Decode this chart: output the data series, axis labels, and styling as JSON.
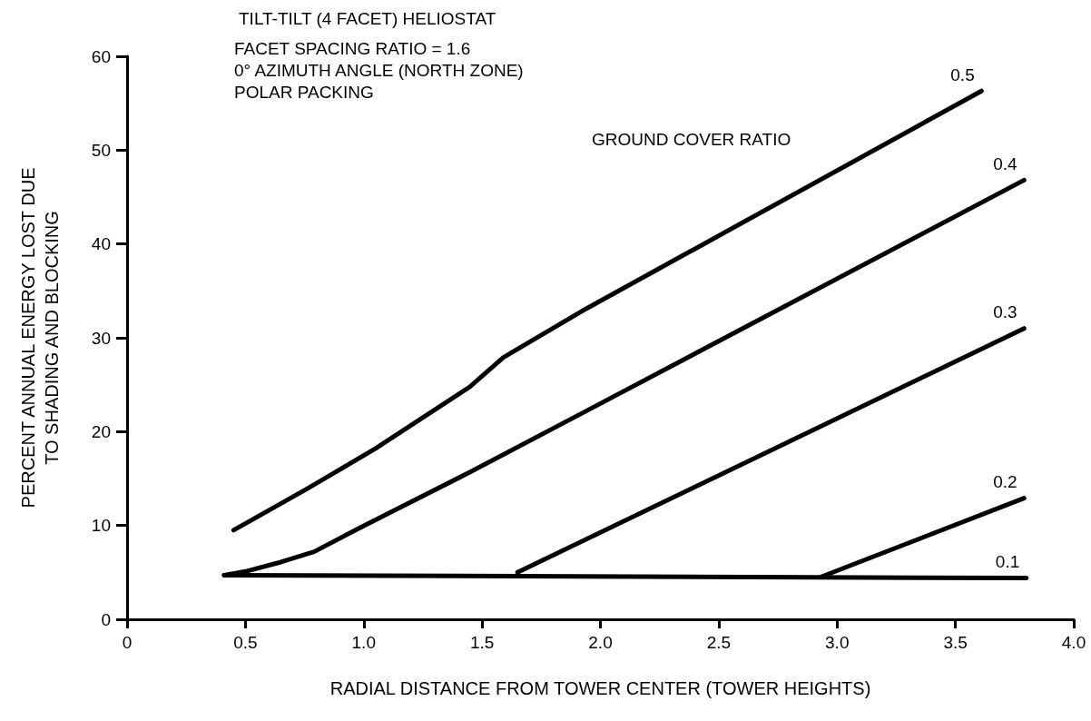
{
  "chart_data": {
    "type": "line",
    "title": "TILT-TILT (4 FACET) HELIOSTAT",
    "annotations": [
      "FACET SPACING RATIO = 1.6",
      "0° AZIMUTH ANGLE (NORTH ZONE)",
      "POLAR PACKING"
    ],
    "legend_title": "GROUND COVER RATIO",
    "xlabel": "RADIAL DISTANCE FROM TOWER CENTER (TOWER HEIGHTS)",
    "ylabel": "PERCENT ANNUAL ENERGY LOST DUE\nTO SHADING AND BLOCKING",
    "xlim": [
      0,
      4
    ],
    "ylim": [
      0,
      60
    ],
    "xticks": [
      0,
      0.5,
      {
        "value": 1,
        "label": "1.0"
      },
      1.5,
      {
        "value": 2,
        "label": "2.0"
      },
      2.5,
      {
        "value": 3,
        "label": "3.0"
      },
      3.5,
      {
        "value": 4,
        "label": "4.0"
      }
    ],
    "yticks": [
      0,
      10,
      20,
      30,
      40,
      50,
      60
    ],
    "grid": false,
    "legend": false,
    "marker": "none",
    "line_style": "solid",
    "series": [
      {
        "name": "0.5",
        "color": "#000000",
        "x": [
          0.45,
          0.76,
          1.05,
          1.45,
          1.59,
          1.94,
          3.61
        ],
        "values": [
          9.5,
          13.9,
          18.2,
          24.8,
          27.9,
          33.1,
          56.3
        ]
      },
      {
        "name": "0.4",
        "color": "#000000",
        "x": [
          0.41,
          0.5,
          0.65,
          0.79,
          0.98,
          1.45,
          1.94,
          3.79
        ],
        "values": [
          4.7,
          5.1,
          6.1,
          7.2,
          9.7,
          15.7,
          22.2,
          46.8
        ]
      },
      {
        "name": "0.3",
        "color": "#000000",
        "x": [
          1.65,
          3.79
        ],
        "values": [
          5.0,
          31.0
        ]
      },
      {
        "name": "0.2",
        "color": "#000000",
        "x": [
          2.93,
          3.79
        ],
        "values": [
          4.5,
          12.9
        ]
      },
      {
        "name": "0.1",
        "color": "#000000",
        "x": [
          0.41,
          3.8
        ],
        "values": [
          4.7,
          4.4
        ]
      }
    ]
  }
}
